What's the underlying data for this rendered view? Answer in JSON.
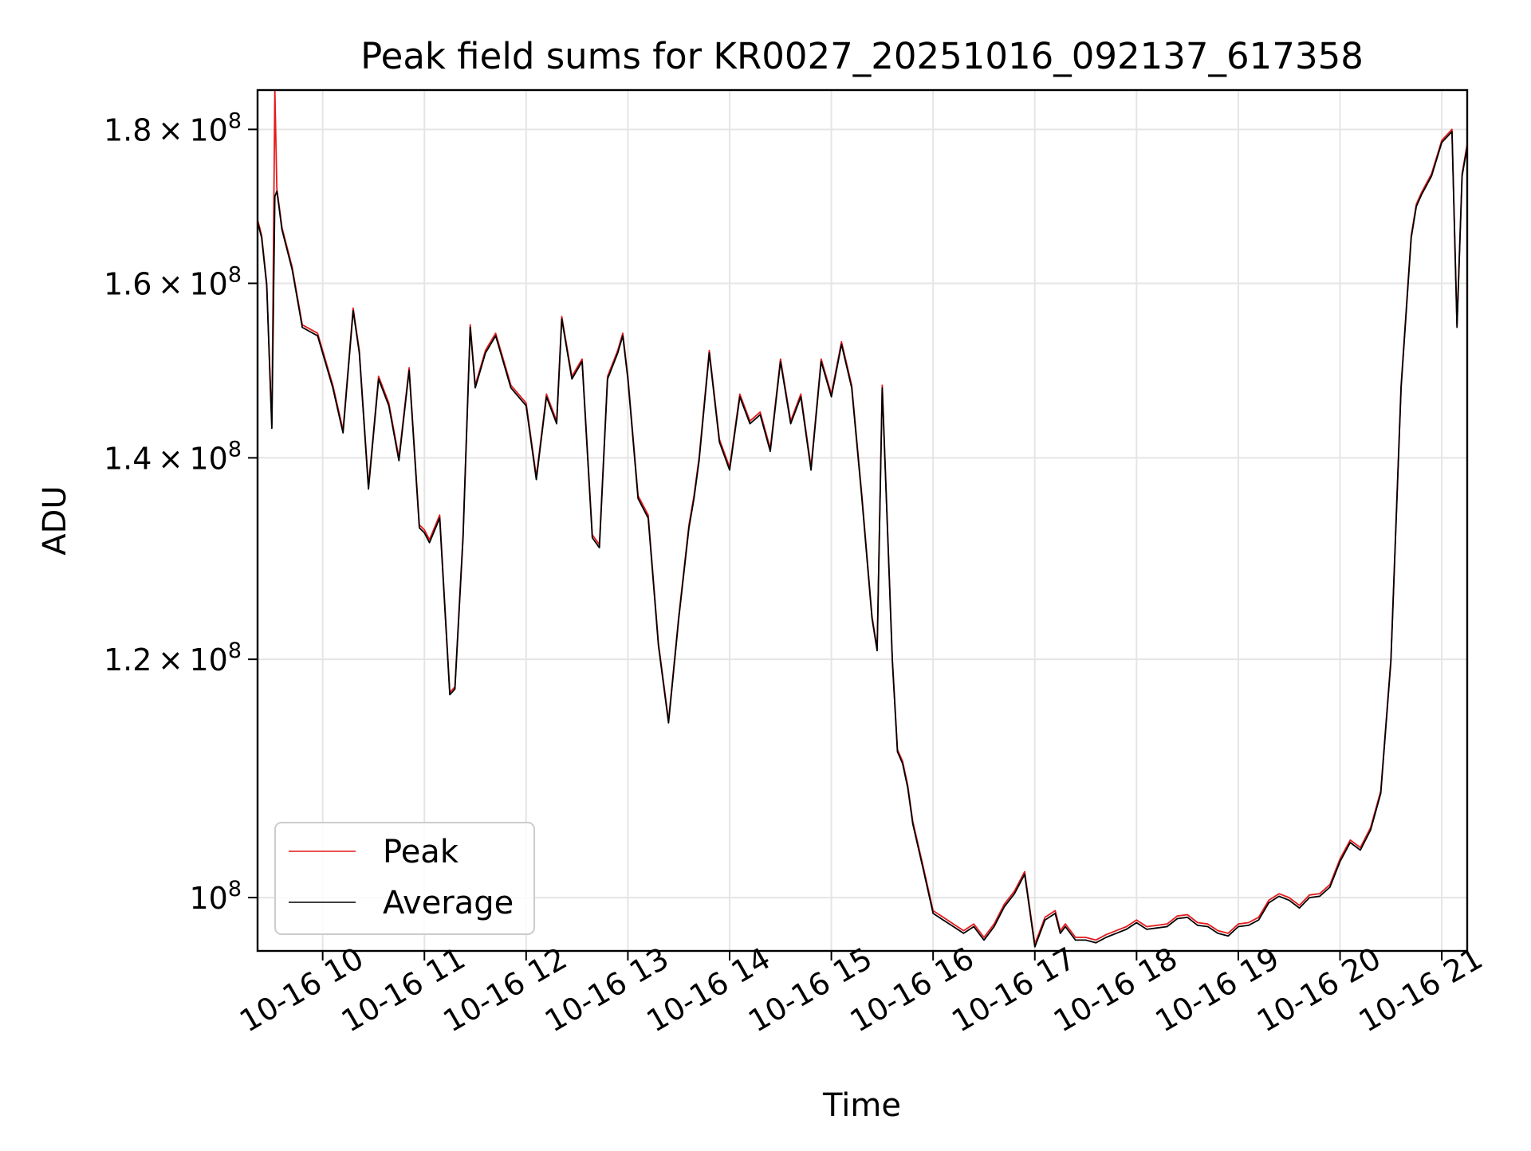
{
  "chart_data": {
    "type": "line",
    "title": "Peak field sums for KR0027_20251016_092137_617358",
    "xlabel": "Time",
    "ylabel": "ADU",
    "yscale": "log",
    "xlim": [
      9.36,
      21.25
    ],
    "ylim": [
      96000000,
      185500000
    ],
    "grid": true,
    "legend_position": "lower-left",
    "x_ticks": [
      10,
      11,
      12,
      13,
      14,
      15,
      16,
      17,
      18,
      19,
      20,
      21
    ],
    "x_tick_labels": [
      "10-16 10",
      "10-16 11",
      "10-16 12",
      "10-16 13",
      "10-16 14",
      "10-16 15",
      "10-16 16",
      "10-16 17",
      "10-16 18",
      "10-16 19",
      "10-16 20",
      "10-16 21"
    ],
    "y_ticks": [
      {
        "value": 100000000,
        "mantissa": "",
        "exp": "8"
      },
      {
        "value": 120000000,
        "mantissa": "1.2",
        "exp": "8"
      },
      {
        "value": 140000000,
        "mantissa": "1.4",
        "exp": "8"
      },
      {
        "value": 160000000,
        "mantissa": "1.6",
        "exp": "8"
      },
      {
        "value": 180000000,
        "mantissa": "1.8",
        "exp": "8"
      }
    ],
    "colors": {
      "peak": "#e41a1c",
      "average": "#000000",
      "grid": "#e5e5e5"
    },
    "series": [
      {
        "name": "Peak",
        "x": [
          9.36,
          9.4,
          9.45,
          9.5,
          9.53,
          9.55,
          9.57,
          9.6,
          9.7,
          9.8,
          9.95,
          10.1,
          10.2,
          10.3,
          10.36,
          10.45,
          10.55,
          10.65,
          10.75,
          10.85,
          10.95,
          11.0,
          11.05,
          11.15,
          11.25,
          11.3,
          11.38,
          11.45,
          11.5,
          11.6,
          11.7,
          11.85,
          12.0,
          12.1,
          12.2,
          12.3,
          12.35,
          12.45,
          12.55,
          12.65,
          12.72,
          12.8,
          12.9,
          12.95,
          13.0,
          13.1,
          13.2,
          13.3,
          13.4,
          13.5,
          13.6,
          13.65,
          13.7,
          13.8,
          13.9,
          14.0,
          14.1,
          14.2,
          14.3,
          14.4,
          14.5,
          14.6,
          14.7,
          14.8,
          14.9,
          15.0,
          15.1,
          15.2,
          15.3,
          15.4,
          15.45,
          15.5,
          15.6,
          15.65,
          15.7,
          15.75,
          15.8,
          15.9,
          16.0,
          16.1,
          16.2,
          16.3,
          16.4,
          16.5,
          16.6,
          16.7,
          16.8,
          16.9,
          17.0,
          17.1,
          17.2,
          17.25,
          17.3,
          17.4,
          17.5,
          17.6,
          17.7,
          17.8,
          17.9,
          18.0,
          18.1,
          18.2,
          18.3,
          18.4,
          18.5,
          18.6,
          18.7,
          18.8,
          18.9,
          19.0,
          19.1,
          19.2,
          19.3,
          19.4,
          19.5,
          19.6,
          19.7,
          19.8,
          19.9,
          20.0,
          20.1,
          20.2,
          20.3,
          20.4,
          20.5,
          20.6,
          20.7,
          20.75,
          20.8,
          20.9,
          21.0,
          21.1,
          21.15,
          21.2,
          21.25
        ],
        "y": [
          168000000,
          166000000,
          160000000,
          143500000,
          185500000,
          172000000,
          170000000,
          167000000,
          162000000,
          155000000,
          154000000,
          148000000,
          143000000,
          157000000,
          152000000,
          137000000,
          149000000,
          146000000,
          140000000,
          150000000,
          133000000,
          132500000,
          131500000,
          134000000,
          117000000,
          117500000,
          132000000,
          155000000,
          148000000,
          152000000,
          154000000,
          148000000,
          146000000,
          138000000,
          147000000,
          144000000,
          156000000,
          149000000,
          151000000,
          132000000,
          131000000,
          149000000,
          152000000,
          154000000,
          149000000,
          136000000,
          134000000,
          121500000,
          114500000,
          124000000,
          133000000,
          136000000,
          140000000,
          152000000,
          142000000,
          139000000,
          147000000,
          144000000,
          145000000,
          141000000,
          151000000,
          144000000,
          147000000,
          139000000,
          151000000,
          147000000,
          153000000,
          148000000,
          136000000,
          124000000,
          121000000,
          148000000,
          120000000,
          112000000,
          111000000,
          109000000,
          106000000,
          102500000,
          99000000,
          98500000,
          98000000,
          97500000,
          98000000,
          97000000,
          98000000,
          99500000,
          100500000,
          102000000,
          96500000,
          98500000,
          99000000,
          97500000,
          98000000,
          97000000,
          97000000,
          96800000,
          97200000,
          97500000,
          97800000,
          98300000,
          97800000,
          97900000,
          98000000,
          98600000,
          98700000,
          98100000,
          98000000,
          97500000,
          97300000,
          98000000,
          98100000,
          98500000,
          99800000,
          100300000,
          100000000,
          99400000,
          100200000,
          100300000,
          101000000,
          103000000,
          104500000,
          103900000,
          105500000,
          108500000,
          120000000,
          148000000,
          166000000,
          170000000,
          171500000,
          174000000,
          178500000,
          180000000,
          155000000,
          174000000,
          178000000
        ]
      },
      {
        "name": "Average",
        "x": [
          9.36,
          9.4,
          9.45,
          9.5,
          9.53,
          9.55,
          9.57,
          9.6,
          9.7,
          9.8,
          9.95,
          10.1,
          10.2,
          10.3,
          10.36,
          10.45,
          10.55,
          10.65,
          10.75,
          10.85,
          10.95,
          11.0,
          11.05,
          11.15,
          11.25,
          11.3,
          11.38,
          11.45,
          11.5,
          11.6,
          11.7,
          11.85,
          12.0,
          12.1,
          12.2,
          12.3,
          12.35,
          12.45,
          12.55,
          12.65,
          12.72,
          12.8,
          12.9,
          12.95,
          13.0,
          13.1,
          13.2,
          13.3,
          13.4,
          13.5,
          13.6,
          13.65,
          13.7,
          13.8,
          13.9,
          14.0,
          14.1,
          14.2,
          14.3,
          14.4,
          14.5,
          14.6,
          14.7,
          14.8,
          14.9,
          15.0,
          15.1,
          15.2,
          15.3,
          15.4,
          15.45,
          15.5,
          15.6,
          15.65,
          15.7,
          15.75,
          15.8,
          15.9,
          16.0,
          16.1,
          16.2,
          16.3,
          16.4,
          16.5,
          16.6,
          16.7,
          16.8,
          16.9,
          17.0,
          17.1,
          17.2,
          17.25,
          17.3,
          17.4,
          17.5,
          17.6,
          17.7,
          17.8,
          17.9,
          18.0,
          18.1,
          18.2,
          18.3,
          18.4,
          18.5,
          18.6,
          18.7,
          18.8,
          18.9,
          19.0,
          19.1,
          19.2,
          19.3,
          19.4,
          19.5,
          19.6,
          19.7,
          19.8,
          19.9,
          20.0,
          20.1,
          20.2,
          20.3,
          20.4,
          20.5,
          20.6,
          20.7,
          20.75,
          20.8,
          20.9,
          21.0,
          21.1,
          21.15,
          21.2,
          21.25
        ],
        "y": [
          167700000,
          165700000,
          159700000,
          143200000,
          171000000,
          171700000,
          169700000,
          166700000,
          161700000,
          154700000,
          153700000,
          147700000,
          142700000,
          156700000,
          151700000,
          136700000,
          148700000,
          145700000,
          139700000,
          149700000,
          132700000,
          132200000,
          131200000,
          133700000,
          116800000,
          117300000,
          131700000,
          154700000,
          147700000,
          151700000,
          153700000,
          147700000,
          145700000,
          137700000,
          146700000,
          143700000,
          155700000,
          148700000,
          150700000,
          131700000,
          130700000,
          148700000,
          151700000,
          153700000,
          148700000,
          135700000,
          133700000,
          121300000,
          114300000,
          123800000,
          132700000,
          135700000,
          139700000,
          151700000,
          141700000,
          138700000,
          146700000,
          143700000,
          144700000,
          140700000,
          150700000,
          143700000,
          146700000,
          138700000,
          150700000,
          146700000,
          152700000,
          147700000,
          135700000,
          123800000,
          120800000,
          147700000,
          119800000,
          111800000,
          110800000,
          108800000,
          105800000,
          102300000,
          98800000,
          98300000,
          97800000,
          97300000,
          97800000,
          96800000,
          97800000,
          99300000,
          100300000,
          101800000,
          96300000,
          98300000,
          98800000,
          97300000,
          97800000,
          96800000,
          96800000,
          96600000,
          97000000,
          97300000,
          97600000,
          98100000,
          97600000,
          97700000,
          97800000,
          98400000,
          98500000,
          97900000,
          97800000,
          97300000,
          97100000,
          97800000,
          97900000,
          98300000,
          99600000,
          100100000,
          99800000,
          99200000,
          100000000,
          100100000,
          100800000,
          102800000,
          104300000,
          103700000,
          105300000,
          108300000,
          119800000,
          147700000,
          165700000,
          169700000,
          171200000,
          173700000,
          178200000,
          179700000,
          154700000,
          173700000,
          177700000
        ]
      }
    ]
  }
}
